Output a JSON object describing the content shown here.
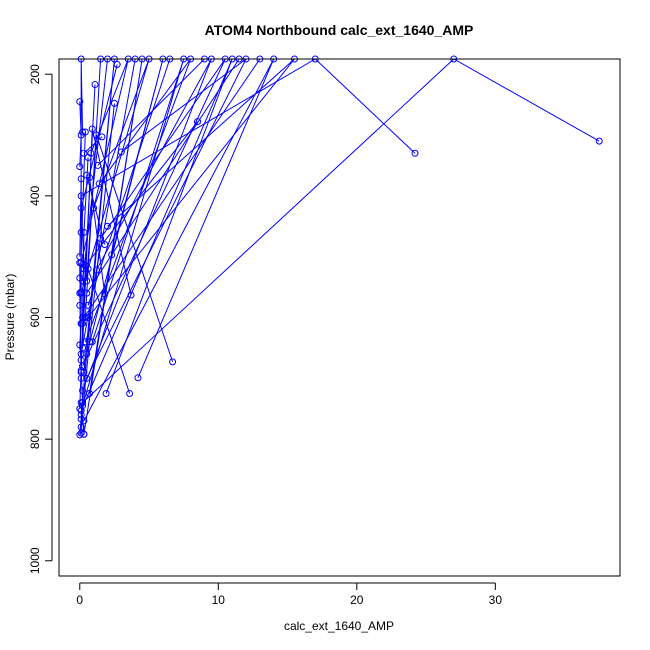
{
  "chart_data": {
    "type": "line",
    "title": "ATOM4 Northbound calc_ext_1640_AMP",
    "xlabel": "calc_ext_1640_AMP",
    "ylabel": "Pressure (mbar)",
    "xlim": [
      -1.5,
      39
    ],
    "ylim": [
      1025,
      175
    ],
    "y_reversed": true,
    "x_ticks": [
      0,
      10,
      20,
      30
    ],
    "y_ticks": [
      200,
      400,
      600,
      800,
      1000
    ],
    "color": "#0000ff",
    "marker": "open-circle",
    "series": [
      {
        "x": [
          24.2,
          17.0,
          0.1,
          0.3
        ],
        "y": [
          330,
          175,
          400,
          520
        ]
      },
      {
        "x": [
          37.5,
          27.0,
          0.2,
          0.1
        ],
        "y": [
          310,
          175,
          740,
          790
        ]
      },
      {
        "x": [
          6.7,
          1.2,
          0.5
        ],
        "y": [
          673,
          300,
          540
        ]
      },
      {
        "x": [
          4.2,
          14.0,
          0.3
        ],
        "y": [
          699,
          175,
          770
        ]
      },
      {
        "x": [
          3.6,
          0.6
        ],
        "y": [
          725,
          520
        ]
      },
      {
        "x": [
          1.9,
          11.0,
          0.1
        ],
        "y": [
          725,
          175,
          753
        ]
      },
      {
        "x": [
          8.5,
          0.4,
          0.1
        ],
        "y": [
          278,
          515,
          690
        ]
      },
      {
        "x": [
          3.7,
          0.9,
          0.2
        ],
        "y": [
          563,
          290,
          650
        ]
      },
      {
        "x": [
          2.7,
          0.1,
          0.1
        ],
        "y": [
          184,
          420,
          610
        ]
      },
      {
        "x": [
          1.1,
          0.2,
          0.0
        ],
        "y": [
          217,
          610,
          750
        ]
      },
      {
        "x": [
          2.5,
          0.7,
          0.1
        ],
        "y": [
          248,
          640,
          780
        ]
      },
      {
        "x": [
          1.6,
          0.3
        ],
        "y": [
          303,
          330
        ]
      },
      {
        "x": [
          3.0,
          12.0,
          0.5
        ],
        "y": [
          328,
          175,
          700
        ]
      },
      {
        "x": [
          0.2,
          0.1,
          0.1
        ],
        "y": [
          295,
          175,
          460
        ]
      },
      {
        "x": [
          0.4,
          0.0,
          0.1
        ],
        "y": [
          295,
          560,
          700
        ]
      },
      {
        "x": [
          0.6,
          0.3,
          0.2
        ],
        "y": [
          337,
          460,
          600
        ]
      },
      {
        "x": [
          0.5,
          1.8
        ],
        "y": [
          366,
          480
        ]
      },
      {
        "x": [
          2.3,
          6.0,
          0.5
        ],
        "y": [
          497,
          175,
          660
        ]
      },
      {
        "x": [
          1.8,
          0.7
        ],
        "y": [
          561,
          370
        ]
      },
      {
        "x": [
          1.2,
          9.5,
          0.2
        ],
        "y": [
          522,
          175,
          720
        ]
      },
      {
        "x": [
          0.9,
          7.5,
          0.2
        ],
        "y": [
          640,
          175,
          745
        ]
      },
      {
        "x": [
          0.7,
          4.5,
          0.3
        ],
        "y": [
          725,
          175,
          792
        ]
      },
      {
        "x": [
          0.3,
          2.5,
          0.1
        ],
        "y": [
          690,
          175,
          760
        ]
      },
      {
        "x": [
          0.0,
          0.1,
          0.0
        ],
        "y": [
          245,
          300,
          352
        ]
      },
      {
        "x": [
          0.1,
          0.0
        ],
        "y": [
          372,
          500
        ]
      },
      {
        "x": [
          0.0,
          0.0,
          0.1,
          0.0
        ],
        "y": [
          510,
          535,
          558,
          580
        ]
      },
      {
        "x": [
          0.1,
          0.0,
          0.1
        ],
        "y": [
          610,
          645,
          670
        ]
      },
      {
        "x": [
          0.1,
          0.2,
          0.1,
          0.0
        ],
        "y": [
          687,
          740,
          767,
          793
        ]
      },
      {
        "x": [
          0.3,
          0.1
        ],
        "y": [
          792,
          740
        ]
      },
      {
        "x": [
          1.4,
          8.0,
          0.4
        ],
        "y": [
          380,
          175,
          640
        ]
      },
      {
        "x": [
          1.0,
          5.0,
          0.1
        ],
        "y": [
          420,
          175,
          560
        ]
      },
      {
        "x": [
          2.0,
          15.5,
          0.6
        ],
        "y": [
          450,
          175,
          600
        ]
      },
      {
        "x": [
          1.5,
          10.5,
          0.2
        ],
        "y": [
          470,
          175,
          680
        ]
      },
      {
        "x": [
          0.8,
          3.5,
          0.1
        ],
        "y": [
          330,
          175,
          510
        ]
      },
      {
        "x": [
          0.4,
          1.5
        ],
        "y": [
          600,
          175
        ]
      },
      {
        "x": [
          0.2,
          2.0
        ],
        "y": [
          540,
          175
        ]
      },
      {
        "x": [
          0.1,
          4.0
        ],
        "y": [
          660,
          175
        ]
      },
      {
        "x": [
          1.3,
          9.0
        ],
        "y": [
          350,
          175
        ]
      },
      {
        "x": [
          0.6,
          6.5
        ],
        "y": [
          580,
          175
        ]
      },
      {
        "x": [
          0.3,
          13.0
        ],
        "y": [
          600,
          175
        ]
      },
      {
        "x": [
          0.5,
          11.5
        ],
        "y": [
          560,
          175
        ]
      }
    ]
  }
}
